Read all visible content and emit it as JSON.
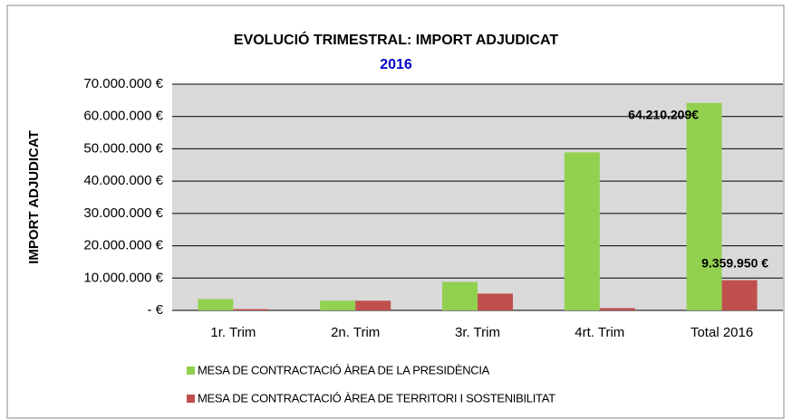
{
  "chart_data": {
    "type": "bar",
    "title": "EVOLUCIÓ TRIMESTRAL: IMPORT ADJUDICAT",
    "subtitle": "2016",
    "y_label": "IMPORT ADJUDICAT",
    "categories": [
      "1r. Trim",
      "2n. Trim",
      "3r. Trim",
      "4rt. Trim",
      "Total 2016"
    ],
    "series": [
      {
        "name": "MESA DE CONTRACTACIÓ ÀREA DE LA PRESIDÈNCIA",
        "color": "#92d050",
        "values": [
          3500000,
          3000000,
          8800000,
          48900000,
          64210209
        ],
        "value_labels": [
          null,
          null,
          null,
          null,
          "64.210.209€"
        ]
      },
      {
        "name": "MESA DE CONTRACTACIÓ ÀREA DE TERRITORI I SOSTENIBILITAT",
        "color": "#c0504d",
        "values": [
          400000,
          3000000,
          5200000,
          700000,
          9359950
        ],
        "value_labels": [
          null,
          null,
          null,
          null,
          "9.359.950 €"
        ]
      }
    ],
    "ylim": [
      0,
      70000000
    ],
    "yticks": [
      {
        "value": 0,
        "label": "-  €"
      },
      {
        "value": 10000000,
        "label": "10.000.000 €"
      },
      {
        "value": 20000000,
        "label": "20.000.000 €"
      },
      {
        "value": 30000000,
        "label": "30.000.000 €"
      },
      {
        "value": 40000000,
        "label": "40.000.000 €"
      },
      {
        "value": 50000000,
        "label": "50.000.000 €"
      },
      {
        "value": 60000000,
        "label": "60.000.000 €"
      },
      {
        "value": 70000000,
        "label": "70.000.000 €"
      }
    ],
    "grid": true,
    "plot_background": "#d9d9d9"
  }
}
